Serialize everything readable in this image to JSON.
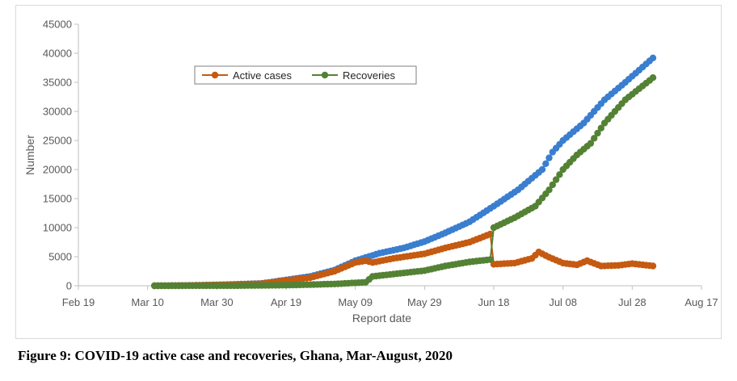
{
  "caption": "Figure 9: COVID-19 active case and recoveries, Ghana, Mar-August, 2020",
  "chart_data": {
    "type": "line",
    "title": "",
    "xlabel": "Report date",
    "ylabel": "Number",
    "x_ticks": [
      "Feb 19",
      "Mar 10",
      "Mar 30",
      "Apr 19",
      "May 09",
      "May 29",
      "Jun 18",
      "Jul 08",
      "Jul 28",
      "Aug 17"
    ],
    "xlim": [
      "2020-02-19",
      "2020-08-17"
    ],
    "y_ticks": [
      0,
      5000,
      10000,
      15000,
      20000,
      25000,
      30000,
      35000,
      40000,
      45000
    ],
    "ylim": [
      0,
      45000
    ],
    "grid": false,
    "legend_position": "upper-left",
    "series": [
      {
        "name": "",
        "color": "#3a7ecf",
        "points": [
          [
            "2020-03-12",
            0
          ],
          [
            "2020-03-22",
            50
          ],
          [
            "2020-03-30",
            150
          ],
          [
            "2020-04-05",
            250
          ],
          [
            "2020-04-12",
            400
          ],
          [
            "2020-04-19",
            1000
          ],
          [
            "2020-04-26",
            1600
          ],
          [
            "2020-05-03",
            2700
          ],
          [
            "2020-05-09",
            4300
          ],
          [
            "2020-05-16",
            5600
          ],
          [
            "2020-05-23",
            6500
          ],
          [
            "2020-05-29",
            7600
          ],
          [
            "2020-06-04",
            9100
          ],
          [
            "2020-06-11",
            11000
          ],
          [
            "2020-06-18",
            13700
          ],
          [
            "2020-06-25",
            16500
          ],
          [
            "2020-07-02",
            20000
          ],
          [
            "2020-07-05",
            23000
          ],
          [
            "2020-07-08",
            25000
          ],
          [
            "2020-07-14",
            28000
          ],
          [
            "2020-07-20",
            32000
          ],
          [
            "2020-07-26",
            35000
          ],
          [
            "2020-08-03",
            39200
          ]
        ]
      },
      {
        "name": "Active cases",
        "color": "#c55a11",
        "points": [
          [
            "2020-03-12",
            0
          ],
          [
            "2020-03-22",
            50
          ],
          [
            "2020-03-30",
            140
          ],
          [
            "2020-04-05",
            230
          ],
          [
            "2020-04-12",
            350
          ],
          [
            "2020-04-19",
            900
          ],
          [
            "2020-04-26",
            1400
          ],
          [
            "2020-05-03",
            2500
          ],
          [
            "2020-05-09",
            4000
          ],
          [
            "2020-05-12",
            4300
          ],
          [
            "2020-05-14",
            4000
          ],
          [
            "2020-05-20",
            4700
          ],
          [
            "2020-05-29",
            5500
          ],
          [
            "2020-06-04",
            6500
          ],
          [
            "2020-06-11",
            7500
          ],
          [
            "2020-06-17",
            8900
          ],
          [
            "2020-06-18",
            3700
          ],
          [
            "2020-06-24",
            3900
          ],
          [
            "2020-06-29",
            4700
          ],
          [
            "2020-07-01",
            5800
          ],
          [
            "2020-07-04",
            4900
          ],
          [
            "2020-07-08",
            3900
          ],
          [
            "2020-07-12",
            3600
          ],
          [
            "2020-07-15",
            4300
          ],
          [
            "2020-07-19",
            3400
          ],
          [
            "2020-07-24",
            3500
          ],
          [
            "2020-07-28",
            3800
          ],
          [
            "2020-08-03",
            3400
          ]
        ]
      },
      {
        "name": "Recoveries",
        "color": "#548235",
        "points": [
          [
            "2020-03-12",
            0
          ],
          [
            "2020-04-05",
            20
          ],
          [
            "2020-04-19",
            100
          ],
          [
            "2020-04-26",
            200
          ],
          [
            "2020-05-03",
            300
          ],
          [
            "2020-05-09",
            500
          ],
          [
            "2020-05-12",
            600
          ],
          [
            "2020-05-14",
            1600
          ],
          [
            "2020-05-29",
            2600
          ],
          [
            "2020-06-04",
            3400
          ],
          [
            "2020-06-11",
            4100
          ],
          [
            "2020-06-17",
            4500
          ],
          [
            "2020-06-18",
            10000
          ],
          [
            "2020-06-24",
            11700
          ],
          [
            "2020-06-30",
            13700
          ],
          [
            "2020-07-04",
            16500
          ],
          [
            "2020-07-08",
            20000
          ],
          [
            "2020-07-12",
            22500
          ],
          [
            "2020-07-16",
            24500
          ],
          [
            "2020-07-20",
            28000
          ],
          [
            "2020-07-26",
            32000
          ],
          [
            "2020-08-03",
            35800
          ]
        ]
      }
    ]
  }
}
